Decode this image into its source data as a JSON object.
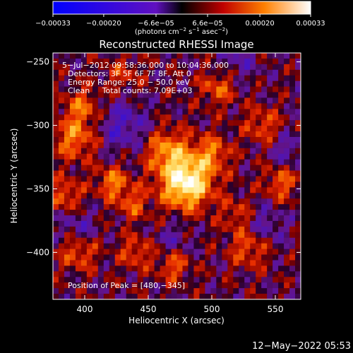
{
  "chart_data": {
    "type": "heatmap",
    "title": "Reconstructed RHESSI Image",
    "xlabel": "Heliocentric X (arcsec)",
    "ylabel": "Heliocentric Y (arcsec)",
    "xlim": [
      375,
      570
    ],
    "ylim": [
      -437,
      -243
    ],
    "x_ticks": [
      400,
      450,
      500,
      550
    ],
    "x_tick_labels": [
      "400",
      "450",
      "500",
      "550"
    ],
    "y_ticks": [
      -250,
      -300,
      -350,
      -400
    ],
    "y_tick_labels": [
      "−250",
      "−300",
      "−350",
      "−400"
    ],
    "colorbar": {
      "range": [
        -0.00033,
        0.00033
      ],
      "ticks": [
        -0.00033,
        -0.0002,
        -6.6e-05,
        6.6e-05,
        0.0002,
        0.00033
      ],
      "tick_labels": [
        "−0.00033",
        "−0.00020",
        "−6.6e−05",
        "6.6e−05",
        "0.00020",
        "0.00033"
      ],
      "unit_label_main": "(photons cm",
      "unit_sup_1": "−2",
      "unit_mid": " s",
      "unit_sup_2": "−1",
      "unit_asec": " asec",
      "unit_sup_3": "−2",
      "unit_close": ")"
    },
    "peak": {
      "x": 480,
      "y": -345
    },
    "annotations": [
      "5−Jul−2012 09:58:36.000 to 10:04:36.000",
      "Detectors: 3F 5F 6F 7F 8F, Att 0",
      "Energy Range: 25.0 − 50.0 keV",
      "Clean     Total counts: 7.09E+03"
    ],
    "peak_label": "Position of Peak = [480,−345]",
    "grid": false
  },
  "footer": {
    "timestamp": "12−May−2022 05:53"
  }
}
